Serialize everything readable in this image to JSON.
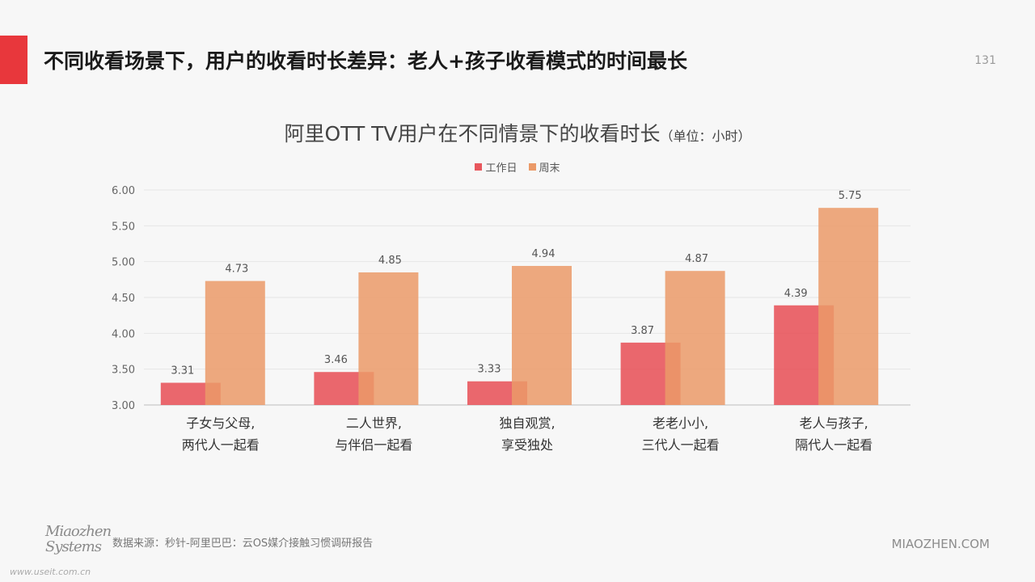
{
  "header": {
    "title": "不同收看场景下，用户的收看时长差异：老人+孩子收看模式的时间最长",
    "page_number": "131",
    "accent_color": "#e8373c"
  },
  "chart_data": {
    "type": "bar",
    "title": "阿里OTT TV用户在不同情景下的收看时长",
    "unit_note": "（单位：小时）",
    "categories": [
      [
        "子女与父母,",
        "两代人一起看"
      ],
      [
        "二人世界,",
        "与伴侣一起看"
      ],
      [
        "独自观赏,",
        "享受独处"
      ],
      [
        "老老小小,",
        "三代人一起看"
      ],
      [
        "老人与孩子,",
        "隔代人一起看"
      ]
    ],
    "series": [
      {
        "name": "工作日",
        "color": "#e8575d",
        "values": [
          3.31,
          3.46,
          3.33,
          3.87,
          4.39
        ]
      },
      {
        "name": "周末",
        "color": "#eb9a68",
        "values": [
          4.73,
          4.85,
          4.94,
          4.87,
          5.75
        ]
      }
    ],
    "ylim": [
      3.0,
      6.0
    ],
    "yticks": [
      "3.00",
      "3.50",
      "4.00",
      "4.50",
      "5.00",
      "5.50",
      "6.00"
    ],
    "legend_position": "top-center",
    "grid": true
  },
  "footer": {
    "logo_lines": [
      "Miaozhen",
      "Systems"
    ],
    "source": "数据来源：秒针-阿里巴巴：云OS媒介接触习惯调研报告",
    "brand": "MIAOZHEN.COM",
    "watermark": "www.useit.com.cn"
  }
}
